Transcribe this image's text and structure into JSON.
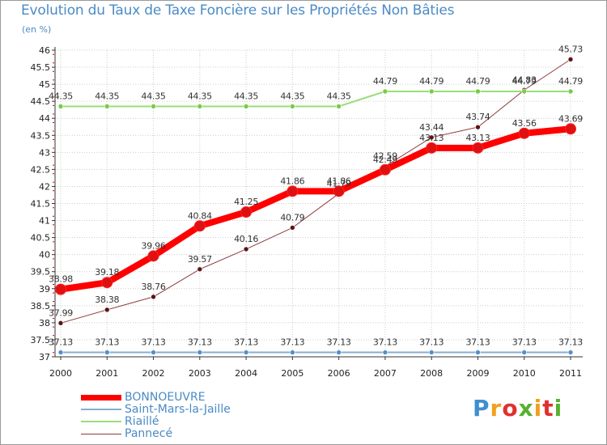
{
  "title": "Evolution du Taux de Taxe Foncière sur les Propriétés Non Bâties",
  "subtitle": "(en %)",
  "logo": "Proxiti",
  "colors": {
    "accent_text": "#4a8bc6",
    "axis": "#333333",
    "grid": "#cccccc",
    "background": "#ffffff"
  },
  "chart_data": {
    "type": "line",
    "title": "Evolution du Taux de Taxe Foncière sur les Propriétés Non Bâties",
    "ylabel": "(en %)",
    "xlabel": "",
    "ylim": [
      37,
      46
    ],
    "y_ticks": [
      "37",
      "37.5",
      "38",
      "38.5",
      "39",
      "39.5",
      "40",
      "40.5",
      "41",
      "41.5",
      "42",
      "42.5",
      "43",
      "43.5",
      "44",
      "44.5",
      "45",
      "45.5",
      "46"
    ],
    "categories": [
      "2000",
      "2001",
      "2002",
      "2003",
      "2004",
      "2005",
      "2006",
      "2007",
      "2008",
      "2009",
      "2010",
      "2011"
    ],
    "grid": true,
    "legend_position": "bottom-left",
    "series": [
      {
        "name": "BONNOEUVRE",
        "color": "#ff0000",
        "point_color": "#dd1111",
        "width": 8,
        "values": [
          38.98,
          39.18,
          39.96,
          40.84,
          41.25,
          41.86,
          41.86,
          42.49,
          43.13,
          43.13,
          43.56,
          43.69
        ],
        "labels": [
          "38.98",
          "39.18",
          "39.96",
          "40.84",
          "41.25",
          "41.86",
          "41.86",
          "42.49",
          "43.13",
          "43.13",
          "43.56",
          "43.69"
        ]
      },
      {
        "name": "Saint-Mars-la-Jaille",
        "color": "#87aecf",
        "point_color": "#4f8fd0",
        "width": 2,
        "values": [
          37.13,
          37.13,
          37.13,
          37.13,
          37.13,
          37.13,
          37.13,
          37.13,
          37.13,
          37.13,
          37.13,
          37.13
        ],
        "labels": [
          "37.13",
          "37.13",
          "37.13",
          "37.13",
          "37.13",
          "37.13",
          "37.13",
          "37.13",
          "37.13",
          "37.13",
          "37.13",
          "37.13"
        ]
      },
      {
        "name": "Riaillé",
        "color": "#99dd77",
        "point_color": "#77cc44",
        "width": 2,
        "values": [
          44.35,
          44.35,
          44.35,
          44.35,
          44.35,
          44.35,
          44.35,
          44.79,
          44.79,
          44.79,
          44.79,
          44.79
        ],
        "labels": [
          "44.35",
          "44.35",
          "44.35",
          "44.35",
          "44.35",
          "44.35",
          "44.35",
          "44.79",
          "44.79",
          "44.79",
          "44.79",
          "44.79"
        ]
      },
      {
        "name": "Pannecé",
        "color": "#8b3a3a",
        "point_color": "#5a1515",
        "width": 1,
        "values": [
          37.99,
          38.38,
          38.76,
          39.57,
          40.16,
          40.79,
          41.79,
          42.59,
          43.44,
          43.74,
          44.83,
          45.73
        ],
        "labels": [
          "37.99",
          "38.38",
          "38.76",
          "39.57",
          "40.16",
          "40.79",
          "41.79",
          "42.59",
          "43.44",
          "43.74",
          "44.83",
          "45.73"
        ]
      }
    ]
  }
}
